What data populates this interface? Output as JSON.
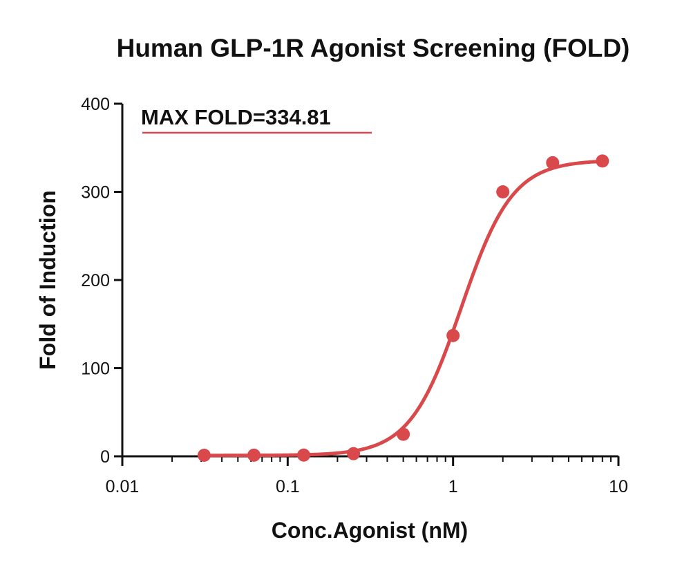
{
  "chart_data": {
    "type": "scatter",
    "title": "Human GLP-1R Agonist Screening (FOLD)",
    "xlabel": "Conc.Agonist (nM)",
    "ylabel": "Fold of Induction",
    "x_scale": "log",
    "xlim": [
      0.01,
      10
    ],
    "ylim": [
      0,
      400
    ],
    "x_ticks": [
      {
        "value": 0.01,
        "label": "0.01"
      },
      {
        "value": 0.1,
        "label": "0.1"
      },
      {
        "value": 1,
        "label": "1"
      },
      {
        "value": 10,
        "label": "10"
      }
    ],
    "y_ticks": [
      {
        "value": 0,
        "label": "0"
      },
      {
        "value": 100,
        "label": "100"
      },
      {
        "value": 200,
        "label": "200"
      },
      {
        "value": 300,
        "label": "300"
      },
      {
        "value": 400,
        "label": "400"
      }
    ],
    "grid": false,
    "series": [
      {
        "color": "#d9484a",
        "marker": "circle",
        "x": [
          0.03125,
          0.0625,
          0.125,
          0.25,
          0.5,
          1,
          2,
          4,
          8
        ],
        "y": [
          1.2,
          1.3,
          1.4,
          3,
          25,
          137,
          300,
          333,
          335
        ],
        "fit_curve": {
          "model": "4PL",
          "bottom": 1,
          "top": 336,
          "ec50": 1.12,
          "hill": 2.8
        }
      }
    ],
    "annotations": [
      {
        "text": "MAX FOLD=334.81",
        "underline": true,
        "underline_color": "#d9484a"
      }
    ]
  }
}
